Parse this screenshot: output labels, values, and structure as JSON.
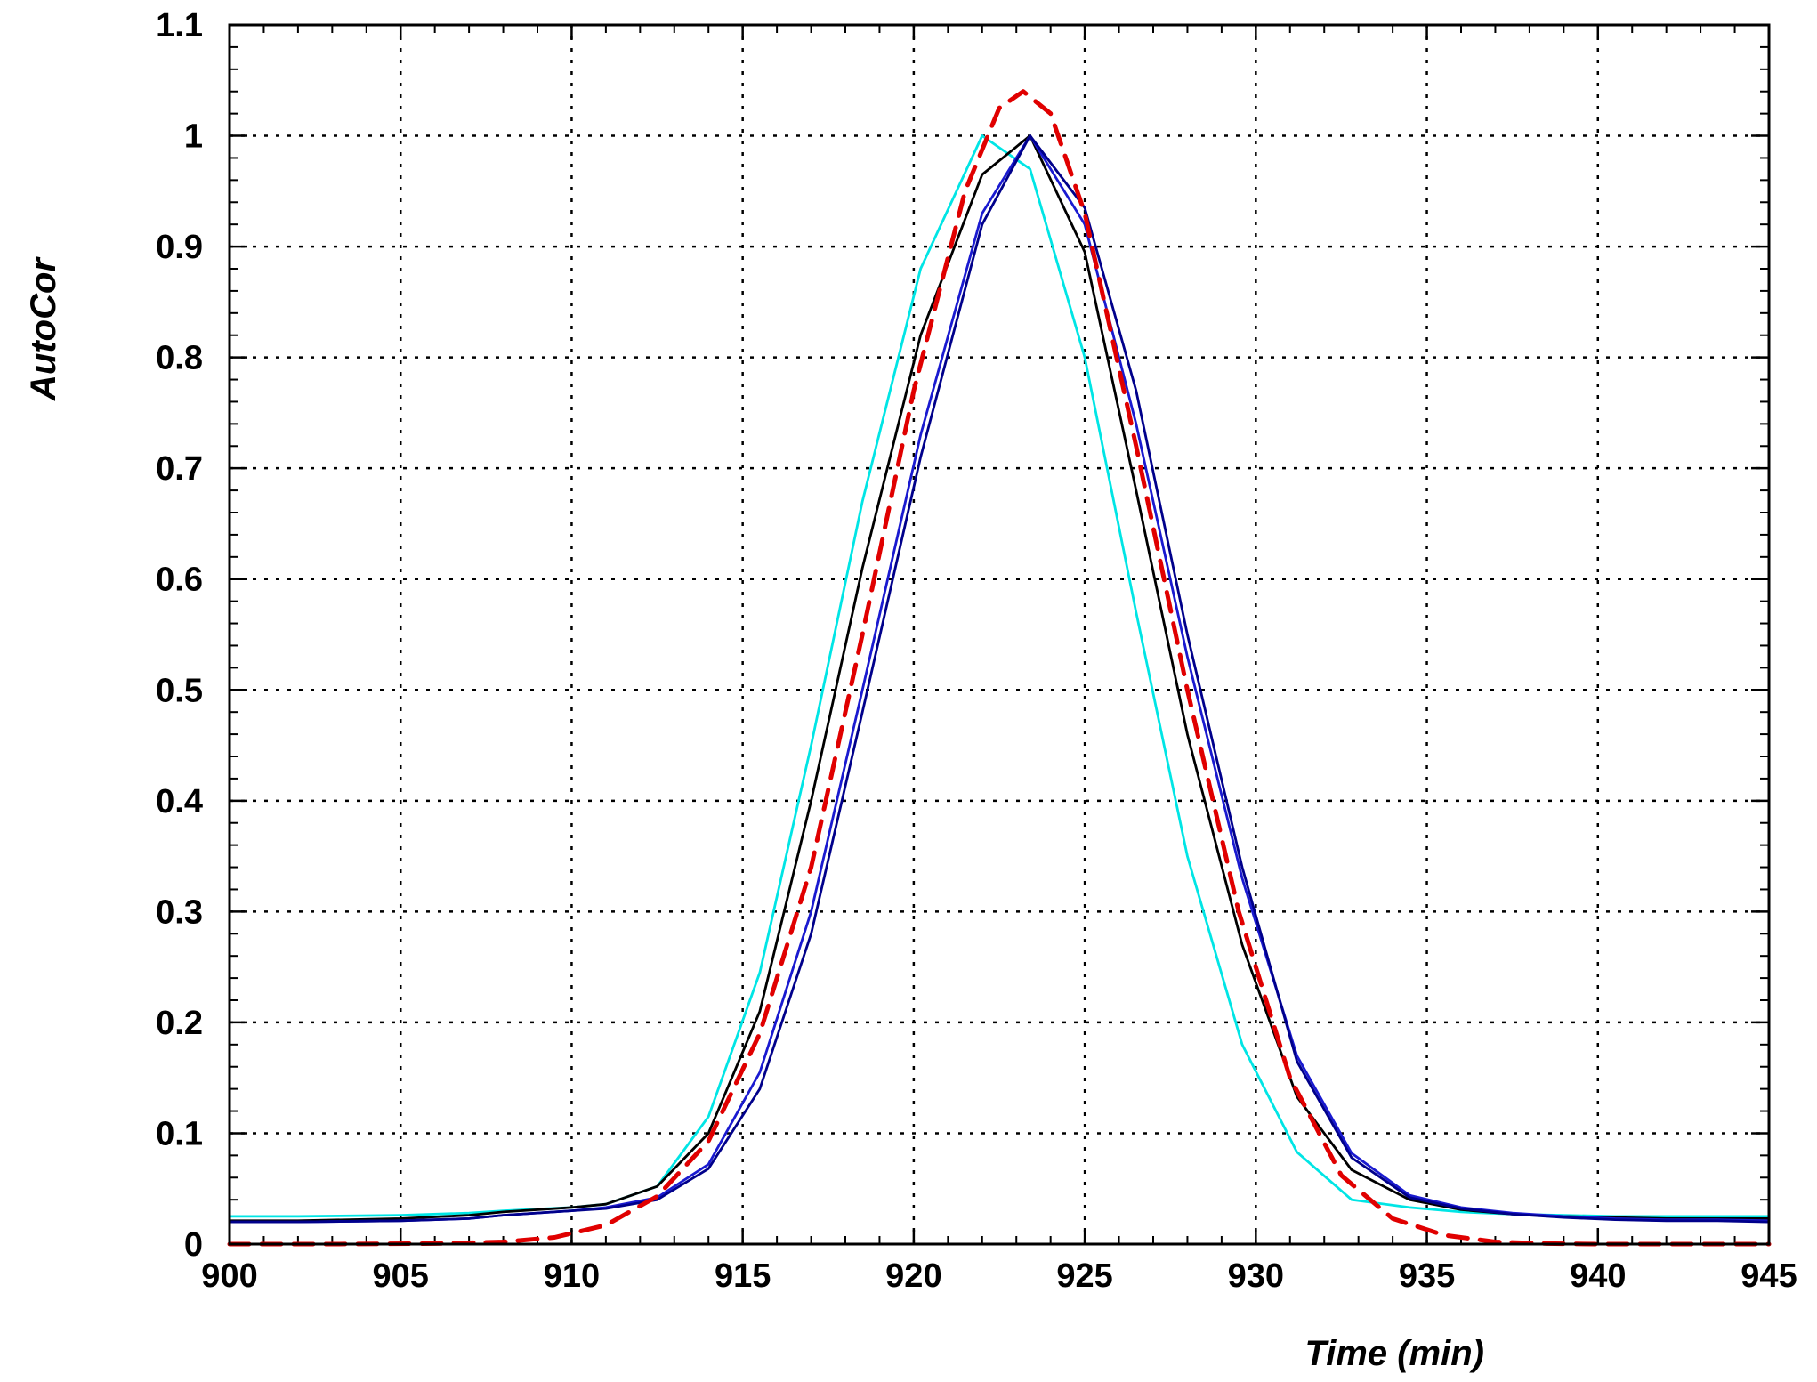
{
  "chart_data": {
    "type": "line",
    "title": "",
    "xlabel": "Time (min)",
    "ylabel": "AutoCor",
    "xlim": [
      900,
      945
    ],
    "ylim": [
      0,
      1.1
    ],
    "x_ticks": [
      900,
      905,
      910,
      915,
      920,
      925,
      930,
      935,
      940,
      945
    ],
    "x_tick_labels": [
      "900",
      "905",
      "910",
      "915",
      "920",
      "925",
      "930",
      "935",
      "940",
      "945"
    ],
    "y_ticks": [
      0,
      0.1,
      0.2,
      0.3,
      0.4,
      0.5,
      0.6,
      0.7,
      0.8,
      0.9,
      1,
      1.1
    ],
    "y_tick_labels": [
      "0",
      "0.1",
      "0.2",
      "0.3",
      "0.4",
      "0.5",
      "0.6",
      "0.7",
      "0.8",
      "0.9",
      "1",
      "1.1"
    ],
    "grid": true,
    "legend": "none",
    "series": [
      {
        "color": "#00e5e5",
        "style": "solid",
        "x": [
          900,
          902,
          905,
          907,
          908,
          910,
          911,
          912.5,
          914,
          915.5,
          917,
          918.5,
          920.2,
          922,
          923.4,
          925,
          926.5,
          928,
          929.6,
          931.2,
          932.8,
          934.5,
          936,
          937.5,
          939,
          940.5,
          942,
          943.5,
          945
        ],
        "y": [
          0.025,
          0.025,
          0.026,
          0.028,
          0.03,
          0.033,
          0.036,
          0.052,
          0.115,
          0.245,
          0.45,
          0.67,
          0.88,
          1.0,
          0.97,
          0.8,
          0.57,
          0.35,
          0.18,
          0.083,
          0.04,
          0.033,
          0.029,
          0.027,
          0.026,
          0.025,
          0.025,
          0.025,
          0.025
        ]
      },
      {
        "color": "#000000",
        "style": "solid",
        "x": [
          900,
          902,
          905,
          907,
          908,
          910,
          911,
          912.5,
          914,
          915.5,
          917,
          918.5,
          920.2,
          922,
          923.4,
          925,
          926.5,
          928,
          929.6,
          931.2,
          932.8,
          934.5,
          936,
          937.5,
          939,
          940.5,
          942,
          943.5,
          945
        ],
        "y": [
          0.021,
          0.021,
          0.023,
          0.026,
          0.029,
          0.033,
          0.036,
          0.052,
          0.1,
          0.21,
          0.4,
          0.61,
          0.82,
          0.965,
          1.0,
          0.895,
          0.68,
          0.46,
          0.27,
          0.133,
          0.067,
          0.04,
          0.031,
          0.027,
          0.025,
          0.024,
          0.023,
          0.023,
          0.023
        ]
      },
      {
        "color": "#1a1ad0",
        "style": "solid",
        "x": [
          900,
          902,
          905,
          907,
          908,
          910,
          911,
          912.5,
          914,
          915.5,
          917,
          918.5,
          920.2,
          922,
          923.4,
          925,
          926.5,
          928,
          929.6,
          931.2,
          932.8,
          934.5,
          936,
          937.5,
          939,
          940.5,
          942,
          943.5,
          945
        ],
        "y": [
          0.02,
          0.02,
          0.021,
          0.023,
          0.026,
          0.03,
          0.033,
          0.042,
          0.072,
          0.155,
          0.3,
          0.5,
          0.73,
          0.93,
          1.0,
          0.92,
          0.74,
          0.53,
          0.33,
          0.17,
          0.082,
          0.044,
          0.033,
          0.028,
          0.025,
          0.023,
          0.022,
          0.022,
          0.021
        ]
      },
      {
        "color": "#00008b",
        "style": "solid",
        "x": [
          900,
          902,
          905,
          907,
          908,
          910,
          911,
          912.5,
          914,
          915.5,
          917,
          918.5,
          920.2,
          922,
          923.4,
          925,
          926.5,
          928,
          929.6,
          931.2,
          932.8,
          934.5,
          936,
          937.5,
          939,
          940.5,
          942,
          943.5,
          945
        ],
        "y": [
          0.02,
          0.02,
          0.021,
          0.023,
          0.026,
          0.03,
          0.032,
          0.04,
          0.068,
          0.14,
          0.28,
          0.48,
          0.71,
          0.92,
          1.0,
          0.935,
          0.77,
          0.55,
          0.34,
          0.165,
          0.078,
          0.042,
          0.032,
          0.027,
          0.024,
          0.022,
          0.021,
          0.021,
          0.02
        ]
      },
      {
        "color": "#e00000",
        "style": "dashed",
        "x": [
          900,
          903,
          906,
          908,
          909.5,
          911,
          912.5,
          914,
          915.5,
          917,
          918.5,
          920,
          921.5,
          922.5,
          923.2,
          924,
          925,
          926.5,
          928,
          929.5,
          931,
          932.5,
          934,
          935.5,
          937,
          938.5,
          940,
          942,
          945
        ],
        "y": [
          0.0,
          0.0,
          0.0005,
          0.002,
          0.006,
          0.017,
          0.043,
          0.093,
          0.19,
          0.34,
          0.55,
          0.77,
          0.95,
          1.025,
          1.04,
          1.02,
          0.93,
          0.72,
          0.5,
          0.3,
          0.15,
          0.062,
          0.023,
          0.008,
          0.002,
          0.0005,
          0.0,
          0.0,
          0.0
        ]
      }
    ]
  }
}
